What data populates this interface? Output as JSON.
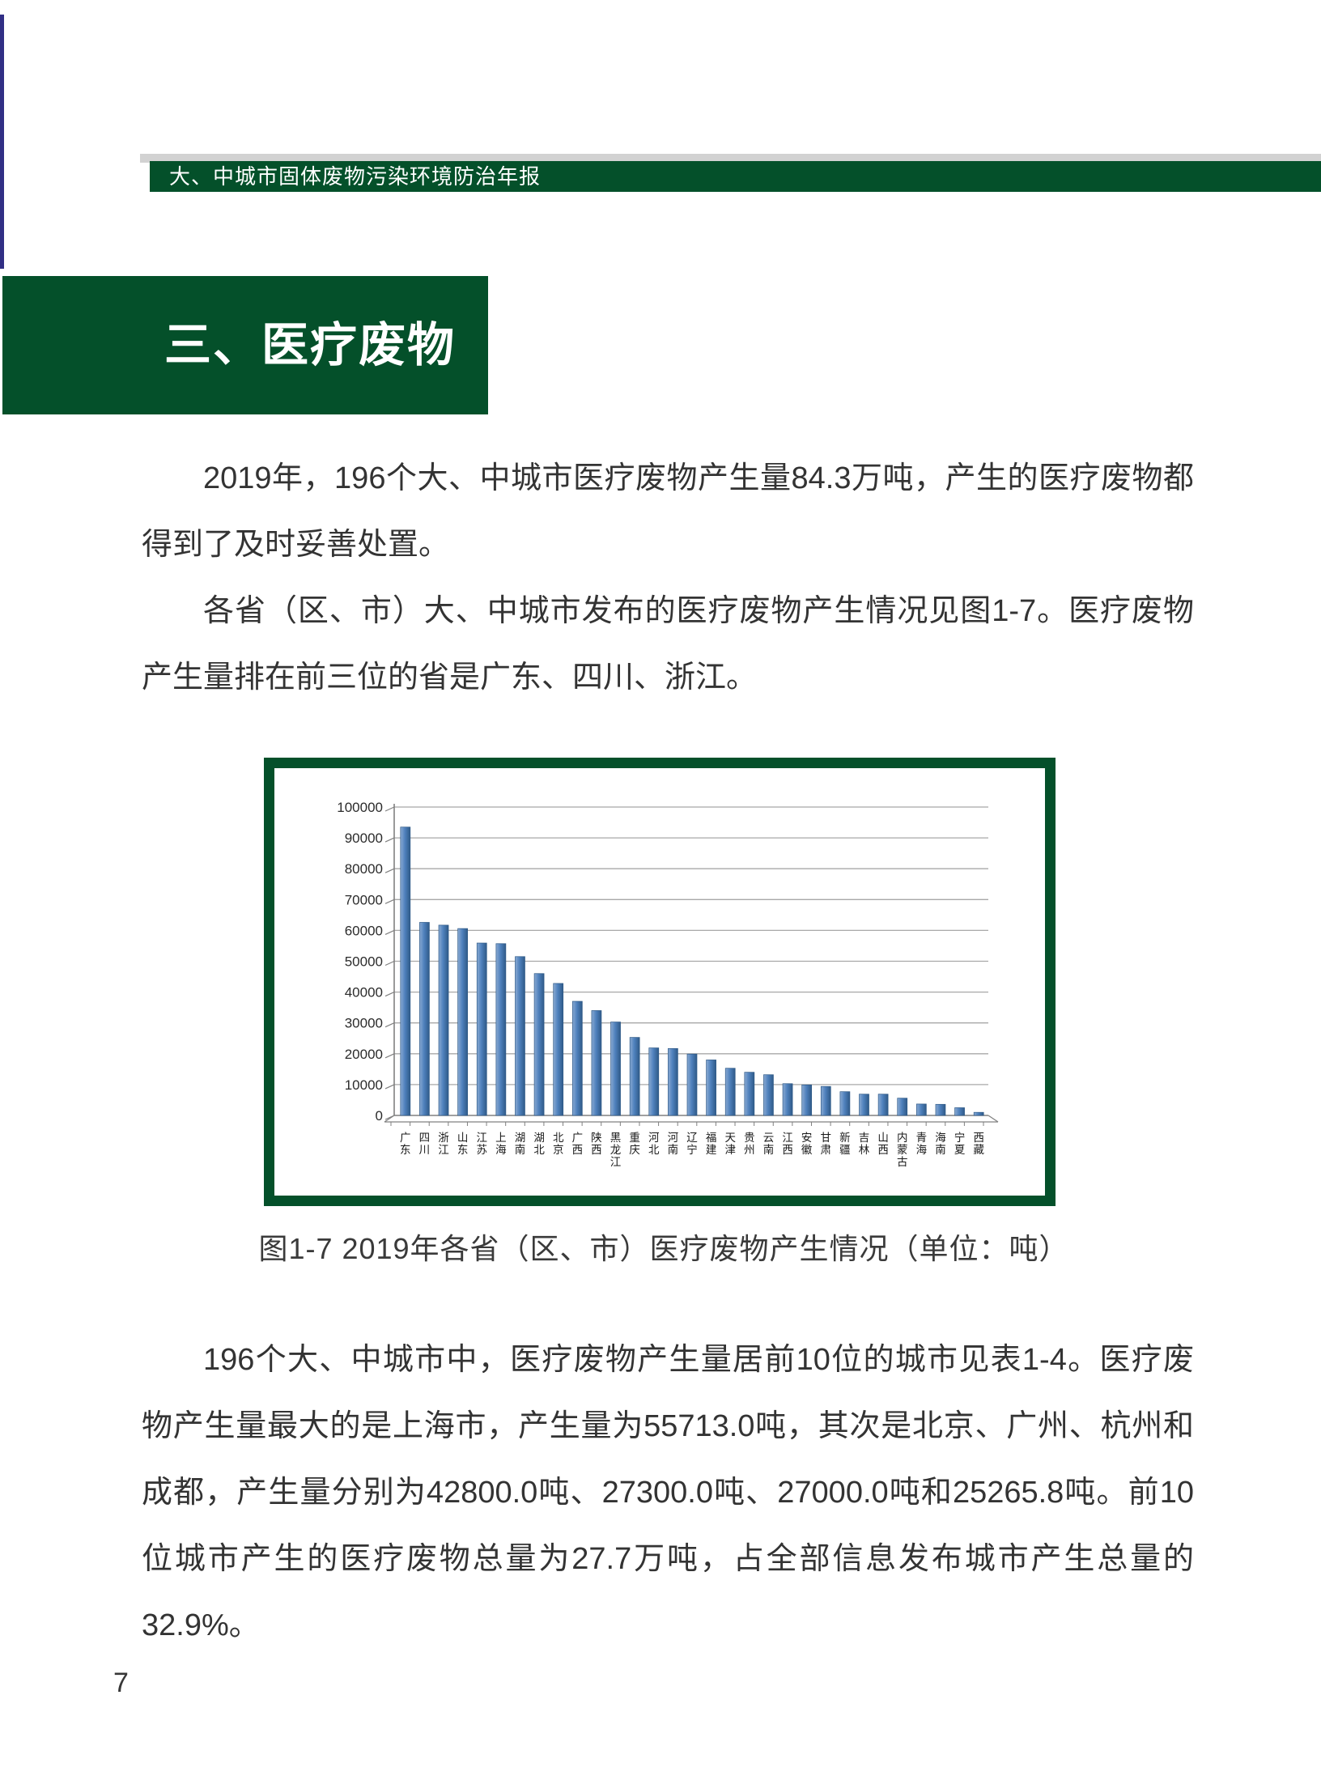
{
  "page": {
    "header_bar": "大、中城市固体废物污染环境防治年报",
    "section_title": "三、医疗废物",
    "paragraphs_top": [
      "2019年，196个大、中城市医疗废物产生量84.3万吨，产生的医疗废物都得到了及时妥善处置。",
      "各省（区、市）大、中城市发布的医疗废物产生情况见图1-7。医疗废物产生量排在前三位的省是广东、四川、浙江。"
    ],
    "figure_caption": "图1-7 2019年各省（区、市）医疗废物产生情况（单位：吨）",
    "paragraphs_bottom": [
      "196个大、中城市中，医疗废物产生量居前10位的城市见表1-4。医疗废物产生量最大的是上海市，产生量为55713.0吨，其次是北京、广州、杭州和成都，产生量分别为42800.0吨、27300.0吨、27000.0吨和25265.8吨。前10位城市产生的医疗废物总量为27.7万吨，占全部信息发布城市产生总量的32.9%。"
    ],
    "page_number": "7"
  },
  "colors": {
    "dark_green": "#04502a",
    "gray_band": "#d2d2d2",
    "blue_rule": "#312f85",
    "body_text": "#333333",
    "bar_blue": "#4f81bd",
    "bar_blue_dark": "#2f5a88",
    "bar_blue_light": "#8aaad2",
    "gridline": "#a8a8a8",
    "axis": "#808080"
  },
  "chart_data": {
    "type": "bar",
    "title": "",
    "xlabel": "",
    "ylabel": "",
    "ylim": [
      0,
      100000
    ],
    "ytick_step": 10000,
    "grid": true,
    "legend": "none",
    "categories": [
      "广东",
      "四川",
      "浙江",
      "山东",
      "江苏",
      "上海",
      "湖南",
      "湖北",
      "北京",
      "广西",
      "陕西",
      "黑龙江",
      "重庆",
      "河北",
      "河南",
      "辽宁",
      "福建",
      "天津",
      "贵州",
      "云南",
      "江西",
      "安徽",
      "甘肃",
      "新疆",
      "吉林",
      "山西",
      "内蒙古",
      "青海",
      "海南",
      "宁夏",
      "西藏"
    ],
    "values": [
      93500,
      62600,
      61700,
      60600,
      55900,
      55700,
      51500,
      46000,
      42800,
      37000,
      34000,
      30300,
      25300,
      21900,
      21700,
      19900,
      18000,
      15300,
      14000,
      13200,
      10300,
      9900,
      9400,
      7700,
      6900,
      6900,
      5600,
      3700,
      3600,
      2500,
      1000
    ]
  }
}
